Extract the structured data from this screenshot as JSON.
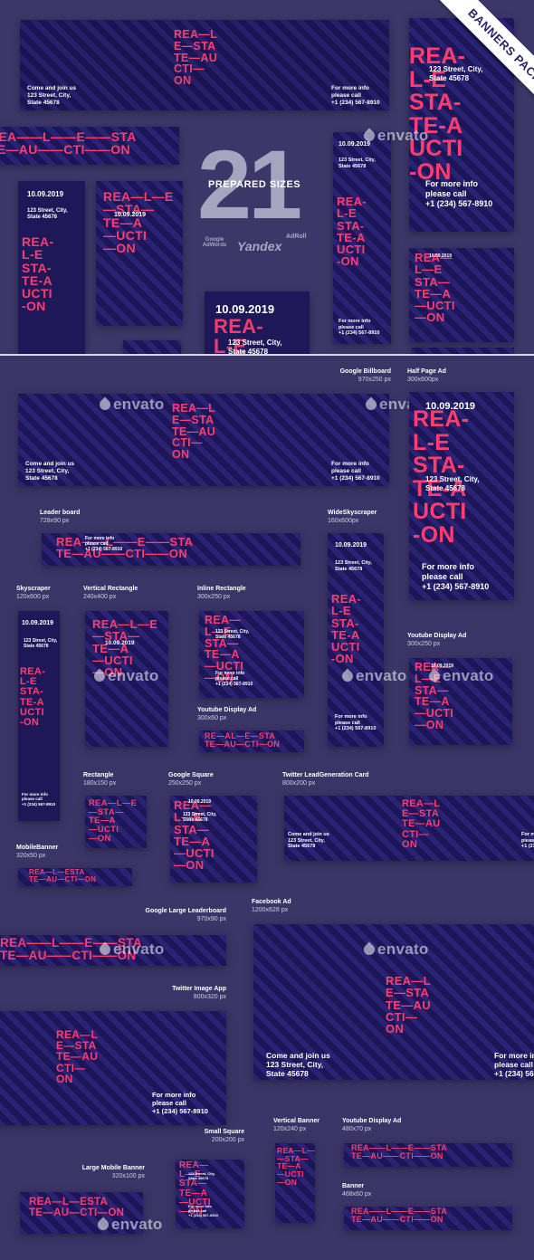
{
  "ribbon": "BANNERS PACK",
  "hero": {
    "count": "21",
    "subtitle": "PREPARED SIZES"
  },
  "logos": {
    "google": "Google AdWords",
    "yandex": "Yandex",
    "adroll": "AdRoll"
  },
  "watermark": "envato",
  "copy": {
    "brand_tall": "REA-\nL-E\nSTA-\nTE-A\nUCTI\n-ON",
    "brand_stack": "REA—L\nE—STA\nTE—AU\nCTI—\nON",
    "brand_wide": "REA——L——E——STA\nTE—AU——CTI——ON",
    "brand_narrow": "REA-\nL-E\nSTA-\nTE-A\nUCTI\n-ON",
    "brand_mid": "REA—L—E\n—STA—\nTE—A\n—UCTI\n—ON",
    "brand_sq": "REA—\nL—E\nSTA—\nTE—A\n—UCTI\n—ON",
    "brand_strip": "RE—AL—E—STA\nTE—AU—CTI—ON",
    "brand_estate": "REA—L—ESTA\nTE—AU—CTI—ON",
    "date": "10.09.2019",
    "address": "123 Street, City,\nState 45678",
    "join": "Come and join us\n123 Street, City,\nState 45678",
    "info": "For more info\nplease call\n+1 (234) 567-8910",
    "info_short": "For more info\nplease call\n+1 (234) 567-8910"
  },
  "labels": {
    "google_billboard": {
      "name": "Google Billboard",
      "size": "970x250 px"
    },
    "half_page": {
      "name": "Half Page Ad",
      "size": "300x600px"
    },
    "leader_board": {
      "name": "Leader board",
      "size": "728x90 px"
    },
    "wide_skyscraper": {
      "name": "WideSkyscraper",
      "size": "160x600px"
    },
    "skyscraper": {
      "name": "Skyscraper",
      "size": "120x600 px"
    },
    "vertical_rectangle": {
      "name": "Vertical Rectangle",
      "size": "240x400 px"
    },
    "inline_rectangle": {
      "name": "Inline Rectangle",
      "size": "300x250 px"
    },
    "youtube_display_300": {
      "name": "Youtube Display Ad",
      "size": "300x250 px"
    },
    "youtube_display_300x60": {
      "name": "Youtube Display Ad",
      "size": "300x60 px"
    },
    "rectangle": {
      "name": "Rectangle",
      "size": "180x150 px"
    },
    "google_square": {
      "name": "Google Square",
      "size": "250x250 px"
    },
    "twitter_leadgen": {
      "name": "Twitter LeadGeneration Card",
      "size": "800x200 px"
    },
    "mobile_banner": {
      "name": "MobileBanner",
      "size": "320x50 px"
    },
    "google_large_leaderboard": {
      "name": "Google Large Leaderboard",
      "size": "970x90 px"
    },
    "facebook_ad": {
      "name": "Facebook Ad",
      "size": "1200x628 px"
    },
    "twitter_image_app": {
      "name": "Twitter Image App",
      "size": "800x320 px"
    },
    "small_square": {
      "name": "Small Square",
      "size": "200x200 px"
    },
    "vertical_banner": {
      "name": "Vertical Banner",
      "size": "120x240 px"
    },
    "youtube_display_480": {
      "name": "Youtube Display Ad",
      "size": "480x70 px"
    },
    "large_mobile_banner": {
      "name": "Large Mobile Banner",
      "size": "320x100 px"
    },
    "banner": {
      "name": "Banner",
      "size": "468x60 px"
    }
  },
  "colors": {
    "accent": "#ff3d6e",
    "background": "#3b3567",
    "banner": "#1c1557"
  }
}
